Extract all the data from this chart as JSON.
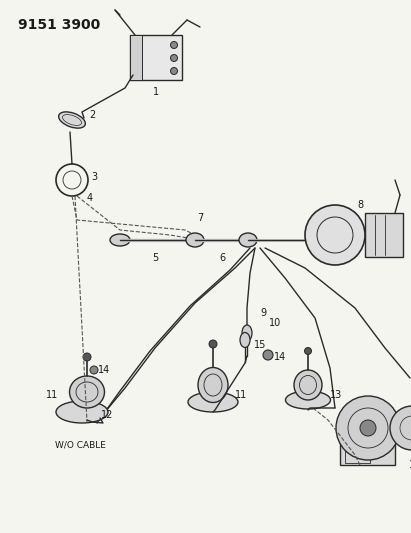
{
  "title": "9151 3900",
  "bg_color": "#f5f5f0",
  "line_color": "#2a2a2a",
  "title_fontsize": 10,
  "fig_width": 4.11,
  "fig_height": 5.33,
  "dpi": 100
}
